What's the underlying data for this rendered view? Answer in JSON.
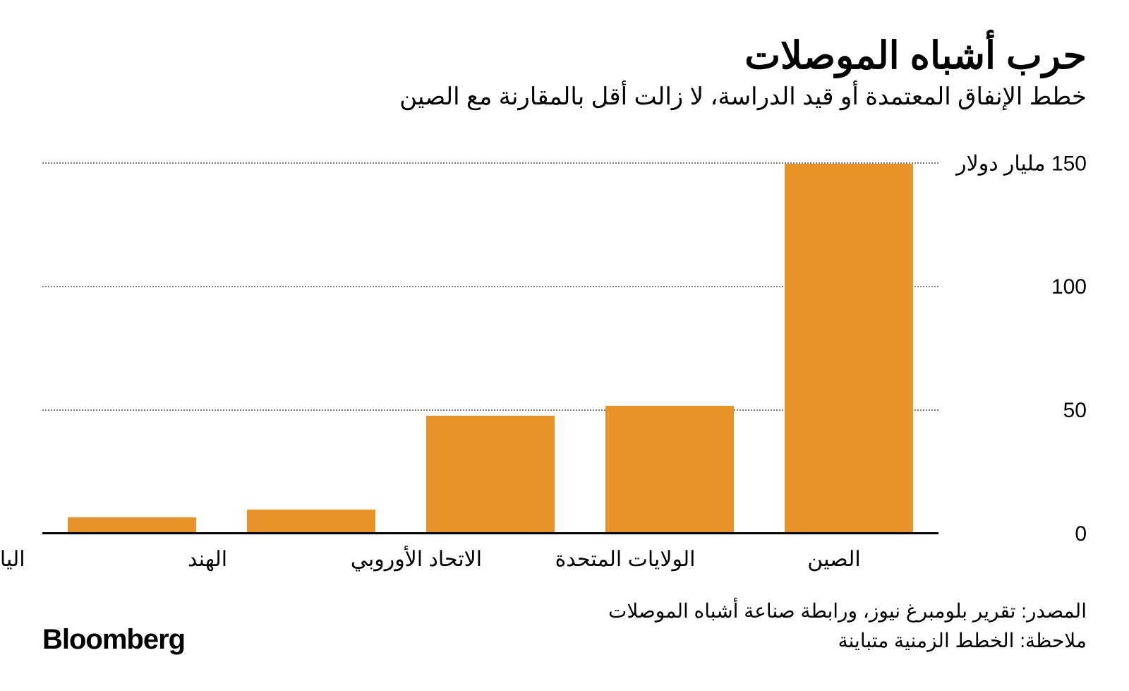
{
  "title": "حرب أشباه الموصلات",
  "subtitle": "خطط الإنفاق المعتمدة أو قيد الدراسة، لا زالت أقل بالمقارنة مع الصين",
  "title_fontsize": 54,
  "subtitle_fontsize": 34,
  "chart": {
    "type": "bar",
    "categories": [
      "الصين",
      "الولايات المتحدة",
      "الاتحاد الأوروبي",
      "الهند",
      "اليابان"
    ],
    "values": [
      150,
      52,
      48,
      10,
      7
    ],
    "bar_color": "#e8922a",
    "ylim_min": 0,
    "ylim_max": 160,
    "yticks": [
      0,
      50,
      100,
      150
    ],
    "ytick_labels": [
      "0",
      "50",
      "100",
      "150 مليار دولار"
    ],
    "grid_color": "#808080",
    "baseline_color": "#000000",
    "background_color": "#ffffff",
    "label_fontsize": 30,
    "bar_width_ratio": 0.72
  },
  "footer": {
    "source": "المصدر: تقرير بلومبرغ نيوز، ورابطة صناعة أشباه الموصلات",
    "note": "ملاحظة: الخطط الزمنية متباينة",
    "brand": "Bloomberg"
  }
}
